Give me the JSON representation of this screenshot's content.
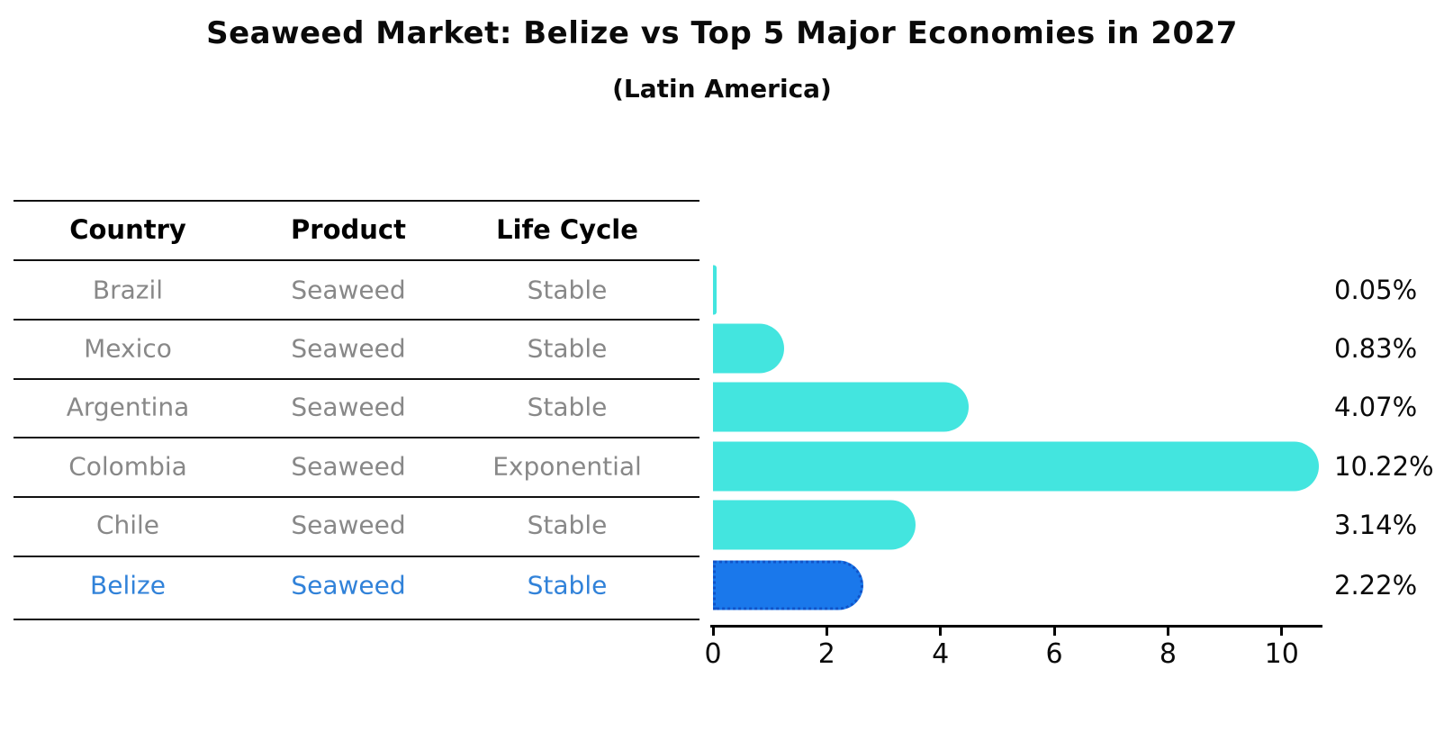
{
  "title": "Seaweed Market: Belize vs Top 5 Major Economies in 2027",
  "subtitle": "(Latin America)",
  "table": {
    "columns": [
      "Country",
      "Product",
      "Life Cycle"
    ],
    "rows": [
      {
        "country": "Brazil",
        "product": "Seaweed",
        "life_cycle": "Stable"
      },
      {
        "country": "Mexico",
        "product": "Seaweed",
        "life_cycle": "Stable"
      },
      {
        "country": "Argentina",
        "product": "Seaweed",
        "life_cycle": "Stable"
      },
      {
        "country": "Colombia",
        "product": "Seaweed",
        "life_cycle": "Exponential"
      },
      {
        "country": "Chile",
        "product": "Seaweed",
        "life_cycle": "Stable"
      },
      {
        "country": "Belize",
        "product": "Seaweed",
        "life_cycle": "Stable"
      }
    ],
    "highlight_row": "Belize"
  },
  "chart_data": {
    "type": "bar",
    "orientation": "horizontal",
    "title": "Seaweed Market: Belize vs Top 5 Major Economies in 2027",
    "subtitle": "(Latin America)",
    "categories": [
      "Brazil",
      "Mexico",
      "Argentina",
      "Colombia",
      "Chile",
      "Belize"
    ],
    "values": [
      0.05,
      0.83,
      4.07,
      10.22,
      3.14,
      2.22
    ],
    "value_labels": [
      "0.05%",
      "0.83%",
      "4.07%",
      "10.22%",
      "3.14%",
      "2.22%"
    ],
    "xticks": [
      0,
      2,
      4,
      6,
      8,
      10
    ],
    "xlim": [
      0,
      10.7
    ],
    "grid": false,
    "legend": "none",
    "highlight_index": 5
  },
  "colors": {
    "bar_default": "#43E5DF",
    "bar_highlight": "#1A78EB",
    "bar_highlight_border": "#1053C8",
    "highlight_text": "#3182D9",
    "row_text": "#888888",
    "header_text": "#000000",
    "axis": "#000000"
  }
}
